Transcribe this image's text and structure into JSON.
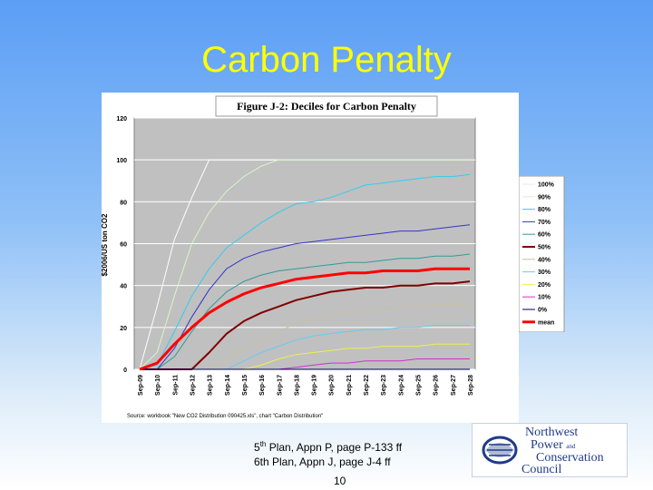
{
  "slide": {
    "title": "Carbon Penalty",
    "ref_line1_prefix": "5",
    "ref_line1_sup": "th",
    "ref_line1_rest": " Plan, Appn P, page P-133 ff",
    "ref_line2": "6th Plan, Appn J, page J-4 ff",
    "page_number": "10"
  },
  "logo": {
    "line1": "Northwest",
    "line2": "Power",
    "line2_small": "and",
    "line3": "Conservation",
    "line4": "Council",
    "colors": {
      "text": "#1f3a8a"
    }
  },
  "chart_data": {
    "type": "line",
    "title": "Figure J-2:  Deciles for Carbon Penalty",
    "ylabel": "$2006/US ton CO2",
    "xlabel": "",
    "source_note": "Source: workbook \"New CO2 Distribution 090425.xls\", chart \"Carbon Distribution\"",
    "ylim": [
      0,
      120
    ],
    "yticks": [
      0,
      20,
      40,
      60,
      80,
      100,
      120
    ],
    "grid": true,
    "legend_position": "right",
    "plot_background": "#c0c0c0",
    "x": [
      "Sep-09",
      "Sep-10",
      "Sep-11",
      "Sep-12",
      "Sep-13",
      "Sep-14",
      "Sep-15",
      "Sep-16",
      "Sep-17",
      "Sep-18",
      "Sep-19",
      "Sep-20",
      "Sep-21",
      "Sep-22",
      "Sep-23",
      "Sep-24",
      "Sep-25",
      "Sep-26",
      "Sep-27",
      "Sep-28"
    ],
    "series": [
      {
        "name": "100%",
        "color": "#ffffff",
        "width": 1,
        "values": [
          0,
          30,
          62,
          82,
          100,
          100,
          100,
          100,
          100,
          100,
          100,
          100,
          100,
          100,
          100,
          100,
          100,
          100,
          100,
          100
        ]
      },
      {
        "name": "90%",
        "color": "#d8f4c8",
        "width": 1,
        "values": [
          0,
          8,
          35,
          60,
          75,
          85,
          92,
          97,
          100,
          100,
          100,
          100,
          100,
          100,
          100,
          100,
          100,
          100,
          100,
          100
        ]
      },
      {
        "name": "80%",
        "color": "#33ccee",
        "width": 1,
        "values": [
          0,
          2,
          18,
          35,
          48,
          58,
          64,
          70,
          75,
          79,
          80,
          82,
          85,
          88,
          89,
          90,
          91,
          92,
          92,
          93
        ]
      },
      {
        "name": "70%",
        "color": "#3333cc",
        "width": 1,
        "values": [
          0,
          0,
          10,
          25,
          38,
          48,
          53,
          56,
          58,
          60,
          61,
          62,
          63,
          64,
          65,
          66,
          66,
          67,
          68,
          69
        ]
      },
      {
        "name": "60%",
        "color": "#339999",
        "width": 1,
        "values": [
          0,
          0,
          6,
          18,
          29,
          37,
          42,
          45,
          47,
          48,
          49,
          50,
          51,
          51,
          52,
          53,
          53,
          54,
          54,
          55
        ]
      },
      {
        "name": "50%",
        "color": "#800000",
        "width": 2,
        "values": [
          0,
          0,
          0,
          0,
          8,
          17,
          23,
          27,
          30,
          33,
          35,
          37,
          38,
          39,
          39,
          40,
          40,
          41,
          41,
          42
        ]
      },
      {
        "name": "40%",
        "color": "#c8c0a0",
        "width": 1,
        "values": [
          0,
          0,
          0,
          0,
          0,
          5,
          10,
          14,
          18,
          22,
          24,
          26,
          27,
          28,
          29,
          30,
          30,
          31,
          31,
          31
        ]
      },
      {
        "name": "30%",
        "color": "#66ccee",
        "width": 1,
        "values": [
          0,
          0,
          0,
          0,
          0,
          0,
          4,
          8,
          11,
          14,
          16,
          17,
          18,
          19,
          19,
          20,
          20,
          21,
          21,
          21
        ]
      },
      {
        "name": "20%",
        "color": "#eeee55",
        "width": 1,
        "values": [
          0,
          0,
          0,
          0,
          0,
          0,
          0,
          2,
          5,
          7,
          8,
          9,
          10,
          10,
          11,
          11,
          11,
          12,
          12,
          12
        ]
      },
      {
        "name": "10%",
        "color": "#cc33cc",
        "width": 1,
        "values": [
          0,
          0,
          0,
          0,
          0,
          0,
          0,
          0,
          0,
          1,
          2,
          3,
          3,
          4,
          4,
          4,
          5,
          5,
          5,
          5
        ]
      },
      {
        "name": "0%",
        "color": "#000066",
        "width": 1,
        "values": [
          0,
          0,
          0,
          0,
          0,
          0,
          0,
          0,
          0,
          0,
          0,
          0,
          0,
          0,
          0,
          0,
          0,
          0,
          0,
          0
        ]
      },
      {
        "name": "mean",
        "color": "#ff0000",
        "width": 3,
        "values": [
          0,
          3,
          12,
          20,
          27,
          32,
          36,
          39,
          41,
          43,
          44,
          45,
          46,
          46,
          47,
          47,
          47,
          48,
          48,
          48
        ]
      }
    ]
  }
}
